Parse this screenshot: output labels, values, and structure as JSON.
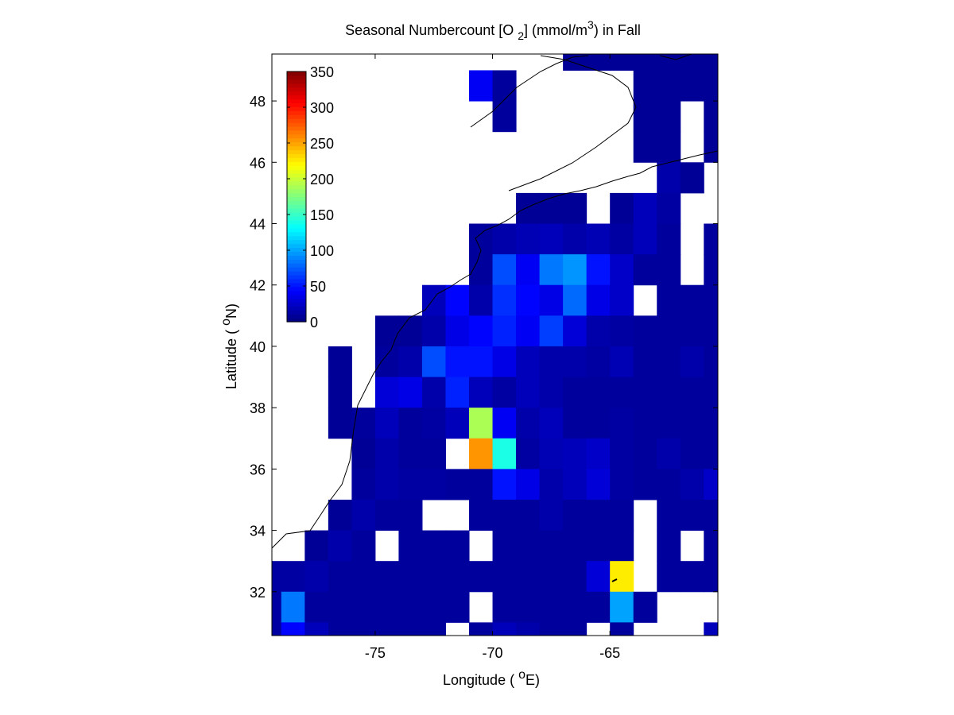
{
  "chart_data": {
    "type": "heatmap",
    "title": [
      "Seasonal Numbercount [O ",
      "2",
      "] (mmol/m",
      "3",
      ") in  Fall"
    ],
    "xlabel": [
      "Longitude ( ",
      "o",
      "E)"
    ],
    "ylabel": [
      "Latitude ( ",
      "o",
      "N)"
    ],
    "x": [
      -79.5,
      -78.5,
      -77.5,
      -76.5,
      -75.5,
      -74.5,
      -73.5,
      -72.5,
      -71.5,
      -70.5,
      -69.5,
      -68.5,
      -67.5,
      -66.5,
      -65.5,
      -64.5,
      -63.5,
      -62.5,
      -61.5,
      -60.5
    ],
    "y": [
      49.5,
      48.5,
      47.5,
      46.5,
      45.5,
      44.5,
      43.5,
      42.5,
      41.5,
      40.5,
      39.5,
      38.5,
      37.5,
      36.5,
      35.5,
      34.5,
      33.5,
      32.5,
      31.5,
      30.5
    ],
    "values": [
      [
        null,
        null,
        null,
        null,
        null,
        null,
        null,
        null,
        null,
        null,
        null,
        null,
        null,
        8,
        8,
        8,
        8,
        8,
        8,
        8
      ],
      [
        null,
        null,
        null,
        null,
        null,
        null,
        null,
        null,
        null,
        40,
        10,
        null,
        null,
        null,
        null,
        null,
        8,
        8,
        8,
        8
      ],
      [
        null,
        null,
        null,
        null,
        null,
        null,
        null,
        null,
        null,
        null,
        10,
        null,
        null,
        null,
        null,
        null,
        8,
        8,
        null,
        8
      ],
      [
        null,
        null,
        null,
        null,
        null,
        null,
        null,
        null,
        null,
        null,
        null,
        null,
        null,
        null,
        null,
        null,
        8,
        8,
        null,
        8
      ],
      [
        null,
        null,
        null,
        null,
        null,
        null,
        null,
        null,
        null,
        null,
        null,
        null,
        null,
        null,
        null,
        null,
        null,
        15,
        8,
        null
      ],
      [
        null,
        null,
        null,
        null,
        null,
        null,
        null,
        null,
        null,
        null,
        null,
        8,
        8,
        8,
        null,
        8,
        20,
        12,
        null,
        null
      ],
      [
        null,
        null,
        null,
        null,
        null,
        null,
        null,
        null,
        null,
        10,
        15,
        18,
        20,
        15,
        18,
        12,
        20,
        10,
        null,
        10
      ],
      [
        null,
        null,
        null,
        null,
        null,
        null,
        null,
        null,
        null,
        10,
        70,
        40,
        85,
        95,
        50,
        25,
        10,
        10,
        null,
        10
      ],
      [
        null,
        null,
        null,
        null,
        null,
        null,
        null,
        20,
        45,
        15,
        60,
        45,
        35,
        80,
        35,
        25,
        null,
        10,
        10,
        10
      ],
      [
        null,
        null,
        null,
        null,
        null,
        8,
        8,
        15,
        35,
        45,
        55,
        40,
        65,
        30,
        15,
        12,
        10,
        10,
        10,
        10
      ],
      [
        null,
        null,
        null,
        8,
        null,
        10,
        15,
        70,
        50,
        50,
        35,
        20,
        15,
        15,
        12,
        18,
        10,
        10,
        15,
        10
      ],
      [
        null,
        null,
        null,
        8,
        null,
        30,
        35,
        15,
        55,
        20,
        12,
        20,
        15,
        10,
        10,
        10,
        10,
        10,
        10,
        10
      ],
      [
        null,
        null,
        null,
        8,
        10,
        20,
        10,
        12,
        20,
        190,
        40,
        15,
        20,
        10,
        10,
        12,
        10,
        10,
        10,
        10
      ],
      [
        null,
        null,
        null,
        null,
        8,
        15,
        10,
        10,
        null,
        255,
        140,
        12,
        18,
        20,
        25,
        12,
        10,
        15,
        10,
        10
      ],
      [
        null,
        null,
        null,
        null,
        10,
        15,
        12,
        12,
        10,
        10,
        50,
        35,
        15,
        20,
        30,
        12,
        10,
        10,
        15,
        25
      ],
      [
        null,
        null,
        null,
        8,
        15,
        10,
        10,
        null,
        null,
        10,
        10,
        10,
        15,
        10,
        10,
        10,
        null,
        10,
        10,
        10
      ],
      [
        null,
        null,
        8,
        15,
        10,
        null,
        10,
        10,
        10,
        null,
        10,
        10,
        10,
        10,
        10,
        10,
        null,
        10,
        null,
        10
      ],
      [
        12,
        12,
        15,
        10,
        10,
        10,
        10,
        10,
        10,
        10,
        10,
        10,
        10,
        10,
        30,
        225,
        null,
        10,
        10,
        10
      ],
      [
        12,
        85,
        10,
        10,
        10,
        10,
        10,
        10,
        10,
        null,
        10,
        10,
        10,
        10,
        10,
        100,
        10,
        null,
        null,
        null
      ],
      [
        12,
        45,
        20,
        10,
        10,
        10,
        10,
        10,
        null,
        10,
        20,
        15,
        10,
        10,
        null,
        10,
        null,
        null,
        null,
        20
      ]
    ],
    "xlim": [
      -79.4,
      -60.4
    ],
    "ylim": [
      30.57,
      49.53
    ],
    "xticks": [
      -75,
      -70,
      -65
    ],
    "yticks": [
      32,
      34,
      36,
      38,
      40,
      42,
      44,
      46,
      48
    ],
    "colormap": "jet",
    "clim": [
      0,
      350
    ],
    "colorbar_ticks": [
      0,
      50,
      100,
      150,
      200,
      250,
      300,
      350
    ]
  }
}
